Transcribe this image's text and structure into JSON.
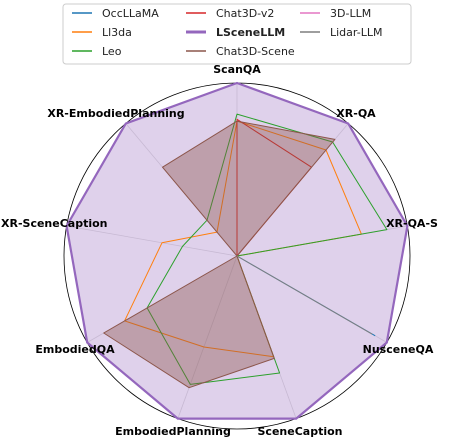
{
  "chart_data": {
    "type": "radar",
    "axes": [
      "ScanQA",
      "XR-QA",
      "XR-QA-S",
      "NusceneQA",
      "SceneCaption",
      "EmbodiedPlanning",
      "EmbodiedQA",
      "XR-SceneCaption",
      "XR-EmbodiedPlanning"
    ],
    "rmax": 1.0,
    "grid": true,
    "legend_position": "top",
    "series": [
      {
        "name": "OccLLaMA",
        "color": "#1f77b4",
        "values": [
          0,
          0,
          0,
          0.92,
          0,
          0,
          0,
          0,
          0
        ],
        "fill": false,
        "width": 1.0
      },
      {
        "name": "Ll3da",
        "color": "#ff7f0e",
        "values": [
          0.78,
          0.8,
          0.73,
          0,
          0.62,
          0.56,
          0.75,
          0.44,
          0.18
        ],
        "fill": false,
        "width": 1.0
      },
      {
        "name": "Leo",
        "color": "#2ca02c",
        "values": [
          0.82,
          0.86,
          0.88,
          0,
          0.72,
          0.79,
          0.6,
          0.32,
          0.27
        ],
        "fill": false,
        "width": 1.0
      },
      {
        "name": "Chat3D-v2",
        "color": "#d62728",
        "values": [
          0.79,
          0.67,
          0,
          0,
          0,
          0,
          0,
          0,
          0
        ],
        "fill": false,
        "width": 1.0
      },
      {
        "name": "LSceneLLM",
        "color": "#9467bd",
        "values": [
          1.0,
          1.0,
          1.0,
          1.0,
          1.0,
          1.0,
          1.0,
          1.0,
          1.0
        ],
        "fill": true,
        "width": 2.2
      },
      {
        "name": "Chat3D-Scene",
        "color": "#8c564b",
        "values": [
          0.78,
          0.88,
          0,
          0,
          0.63,
          0.81,
          0.89,
          0,
          0.67
        ],
        "fill": true,
        "width": 1.0
      },
      {
        "name": "3D-LLM",
        "color": "#e377c2",
        "values": [
          0,
          0,
          0,
          0,
          0,
          0,
          0,
          0,
          0
        ],
        "fill": false,
        "width": 1.0
      },
      {
        "name": "Lidar-LLM",
        "color": "#7f7f7f",
        "values": [
          0,
          0,
          0,
          0.9,
          0,
          0,
          0,
          0,
          0
        ],
        "fill": false,
        "width": 1.0
      }
    ]
  }
}
